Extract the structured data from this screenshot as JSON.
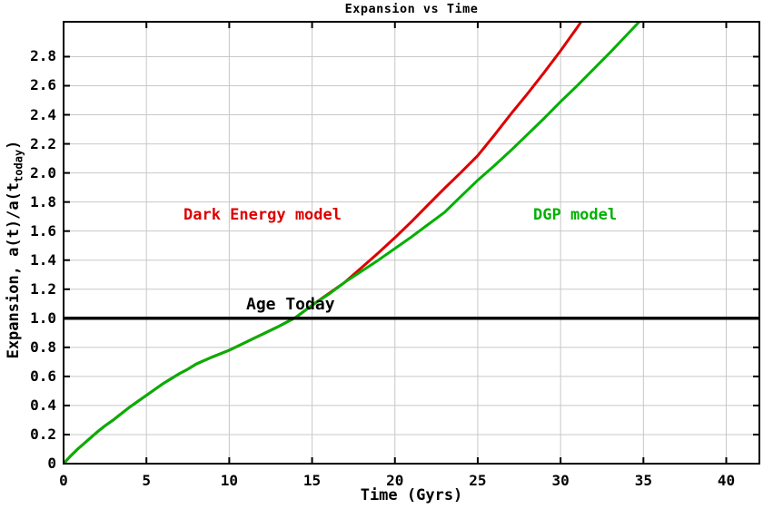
{
  "title": "Expansion vs Time",
  "colors": {
    "dark_energy": "#dd0000",
    "dgp": "#00b000",
    "grid": "#c8c8c8",
    "axis": "#000000",
    "age_line": "#000000",
    "background": "#ffffff"
  },
  "chart_data": {
    "type": "line",
    "title": "Expansion vs Time",
    "xlabel": "Time (Gyrs)",
    "ylabel": "Expansion, a(t)/a(t_today)",
    "ylabel_parts": {
      "prefix": "Expansion, a(t)/a(t",
      "sub": "today",
      "suffix": ")"
    },
    "xlim": [
      0,
      42
    ],
    "ylim": [
      0,
      3.04
    ],
    "grid": true,
    "legend_position": "inline-labels",
    "x_ticks": {
      "values": [
        0,
        5,
        10,
        15,
        20,
        25,
        30,
        35,
        40
      ],
      "labels": [
        "0",
        "5",
        "10",
        "15",
        "20",
        "25",
        "30",
        "35",
        "40"
      ]
    },
    "y_ticks": {
      "values": [
        0,
        0.2,
        0.4,
        0.6,
        0.8,
        1.0,
        1.2,
        1.4,
        1.6,
        1.8,
        2.0,
        2.2,
        2.4,
        2.6,
        2.8
      ],
      "labels": [
        "0",
        "0.2",
        "0.4",
        "0.6",
        "0.8",
        "1.0",
        "1.2",
        "1.4",
        "1.6",
        "1.8",
        "2.0",
        "2.2",
        "2.4",
        "2.6",
        "2.8"
      ]
    },
    "annotations": {
      "age_today": {
        "label": "Age Today",
        "y": 1.0
      }
    },
    "series": [
      {
        "name": "Dark Energy model",
        "color": "#dd0000",
        "points": [
          [
            0,
            0
          ],
          [
            0.4,
            0.05
          ],
          [
            0.8,
            0.095
          ],
          [
            1.2,
            0.135
          ],
          [
            1.6,
            0.175
          ],
          [
            2,
            0.215
          ],
          [
            2.5,
            0.26
          ],
          [
            3,
            0.3
          ],
          [
            3.5,
            0.345
          ],
          [
            4,
            0.39
          ],
          [
            4.5,
            0.43
          ],
          [
            5,
            0.47
          ],
          [
            5.5,
            0.51
          ],
          [
            6,
            0.55
          ],
          [
            6.5,
            0.585
          ],
          [
            7,
            0.62
          ],
          [
            7.5,
            0.65
          ],
          [
            8,
            0.685
          ],
          [
            9,
            0.735
          ],
          [
            10,
            0.78
          ],
          [
            11,
            0.835
          ],
          [
            12,
            0.89
          ],
          [
            13,
            0.945
          ],
          [
            14,
            1.005
          ],
          [
            15,
            1.09
          ],
          [
            16,
            1.17
          ],
          [
            17,
            1.25
          ],
          [
            18,
            1.35
          ],
          [
            19,
            1.45
          ],
          [
            20,
            1.555
          ],
          [
            21,
            1.665
          ],
          [
            22,
            1.78
          ],
          [
            23,
            1.895
          ],
          [
            24,
            2.005
          ],
          [
            25,
            2.12
          ],
          [
            26,
            2.26
          ],
          [
            27,
            2.405
          ],
          [
            28,
            2.545
          ],
          [
            29,
            2.69
          ],
          [
            30,
            2.84
          ],
          [
            31,
            3.0
          ],
          [
            31.6,
            3.1
          ]
        ]
      },
      {
        "name": "DGP model",
        "color": "#00b000",
        "points": [
          [
            0,
            0
          ],
          [
            0.4,
            0.05
          ],
          [
            0.8,
            0.095
          ],
          [
            1.2,
            0.135
          ],
          [
            1.6,
            0.175
          ],
          [
            2,
            0.215
          ],
          [
            2.5,
            0.26
          ],
          [
            3,
            0.3
          ],
          [
            3.5,
            0.345
          ],
          [
            4,
            0.39
          ],
          [
            4.5,
            0.43
          ],
          [
            5,
            0.47
          ],
          [
            5.5,
            0.51
          ],
          [
            6,
            0.55
          ],
          [
            6.5,
            0.585
          ],
          [
            7,
            0.62
          ],
          [
            7.5,
            0.65
          ],
          [
            8,
            0.685
          ],
          [
            9,
            0.735
          ],
          [
            10,
            0.78
          ],
          [
            11,
            0.835
          ],
          [
            12,
            0.89
          ],
          [
            13,
            0.945
          ],
          [
            14,
            1.005
          ],
          [
            15,
            1.09
          ],
          [
            16,
            1.165
          ],
          [
            17,
            1.25
          ],
          [
            18,
            1.325
          ],
          [
            19,
            1.4
          ],
          [
            20,
            1.48
          ],
          [
            21,
            1.56
          ],
          [
            22,
            1.645
          ],
          [
            23,
            1.73
          ],
          [
            24,
            1.84
          ],
          [
            25,
            1.95
          ],
          [
            26,
            2.05
          ],
          [
            27,
            2.155
          ],
          [
            28,
            2.265
          ],
          [
            29,
            2.375
          ],
          [
            30,
            2.49
          ],
          [
            31,
            2.6
          ],
          [
            32,
            2.715
          ],
          [
            33,
            2.83
          ],
          [
            34,
            2.95
          ],
          [
            35,
            3.07
          ],
          [
            35.5,
            3.13
          ]
        ]
      }
    ]
  }
}
